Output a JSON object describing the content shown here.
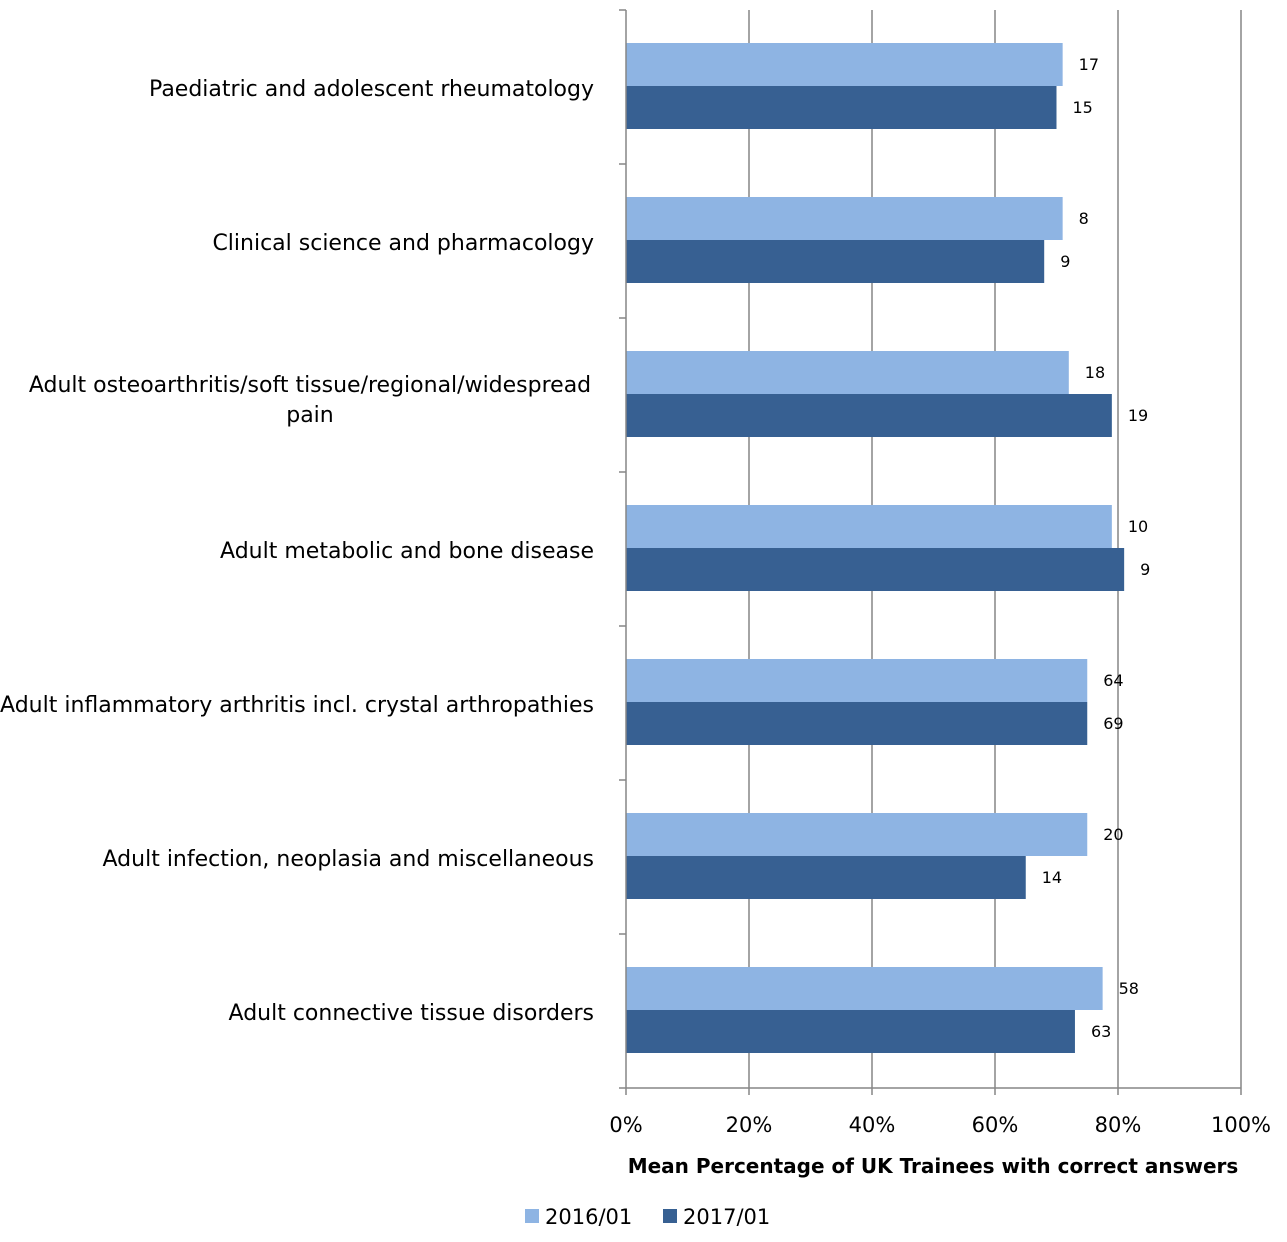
{
  "chart_data": {
    "type": "bar",
    "orientation": "horizontal",
    "categories": [
      "Paediatric and adolescent rheumatology",
      "Clinical science and pharmacology",
      "Adult osteoarthritis/soft tissue/regional/widespread pain",
      "Adult metabolic and bone disease",
      "Adult inflammatory arthritis incl. crystal arthropathies",
      "Adult infection, neoplasia and miscellaneous",
      "Adult connective tissue disorders"
    ],
    "category_lines": [
      [
        "Paediatric and adolescent rheumatology"
      ],
      [
        "Clinical science and pharmacology"
      ],
      [
        "Adult osteoarthritis/soft tissue/regional/widespread",
        "pain"
      ],
      [
        "Adult metabolic and bone disease"
      ],
      [
        "Adult inflammatory arthritis incl. crystal arthropathies"
      ],
      [
        "Adult infection, neoplasia and miscellaneous"
      ],
      [
        "Adult connective tissue disorders"
      ]
    ],
    "series": [
      {
        "name": "2016/01",
        "color": "#8EB4E3",
        "values": [
          71,
          71,
          72,
          79,
          75,
          75,
          77.5
        ],
        "labels": [
          "17",
          "8",
          "18",
          "10",
          "64",
          "20",
          "58"
        ]
      },
      {
        "name": "2017/01",
        "color": "#376092",
        "values": [
          70,
          68,
          79,
          81,
          75,
          65,
          73
        ],
        "labels": [
          "15",
          "9",
          "19",
          "9",
          "69",
          "14",
          "63"
        ]
      }
    ],
    "xlim": [
      0,
      100
    ],
    "x_ticks": [
      "0%",
      "20%",
      "40%",
      "60%",
      "80%",
      "100%"
    ],
    "xlabel": "Mean Percentage of UK Trainees with correct answers",
    "ylabel": "",
    "title": "",
    "grid": "vertical",
    "legend_position": "bottom"
  }
}
